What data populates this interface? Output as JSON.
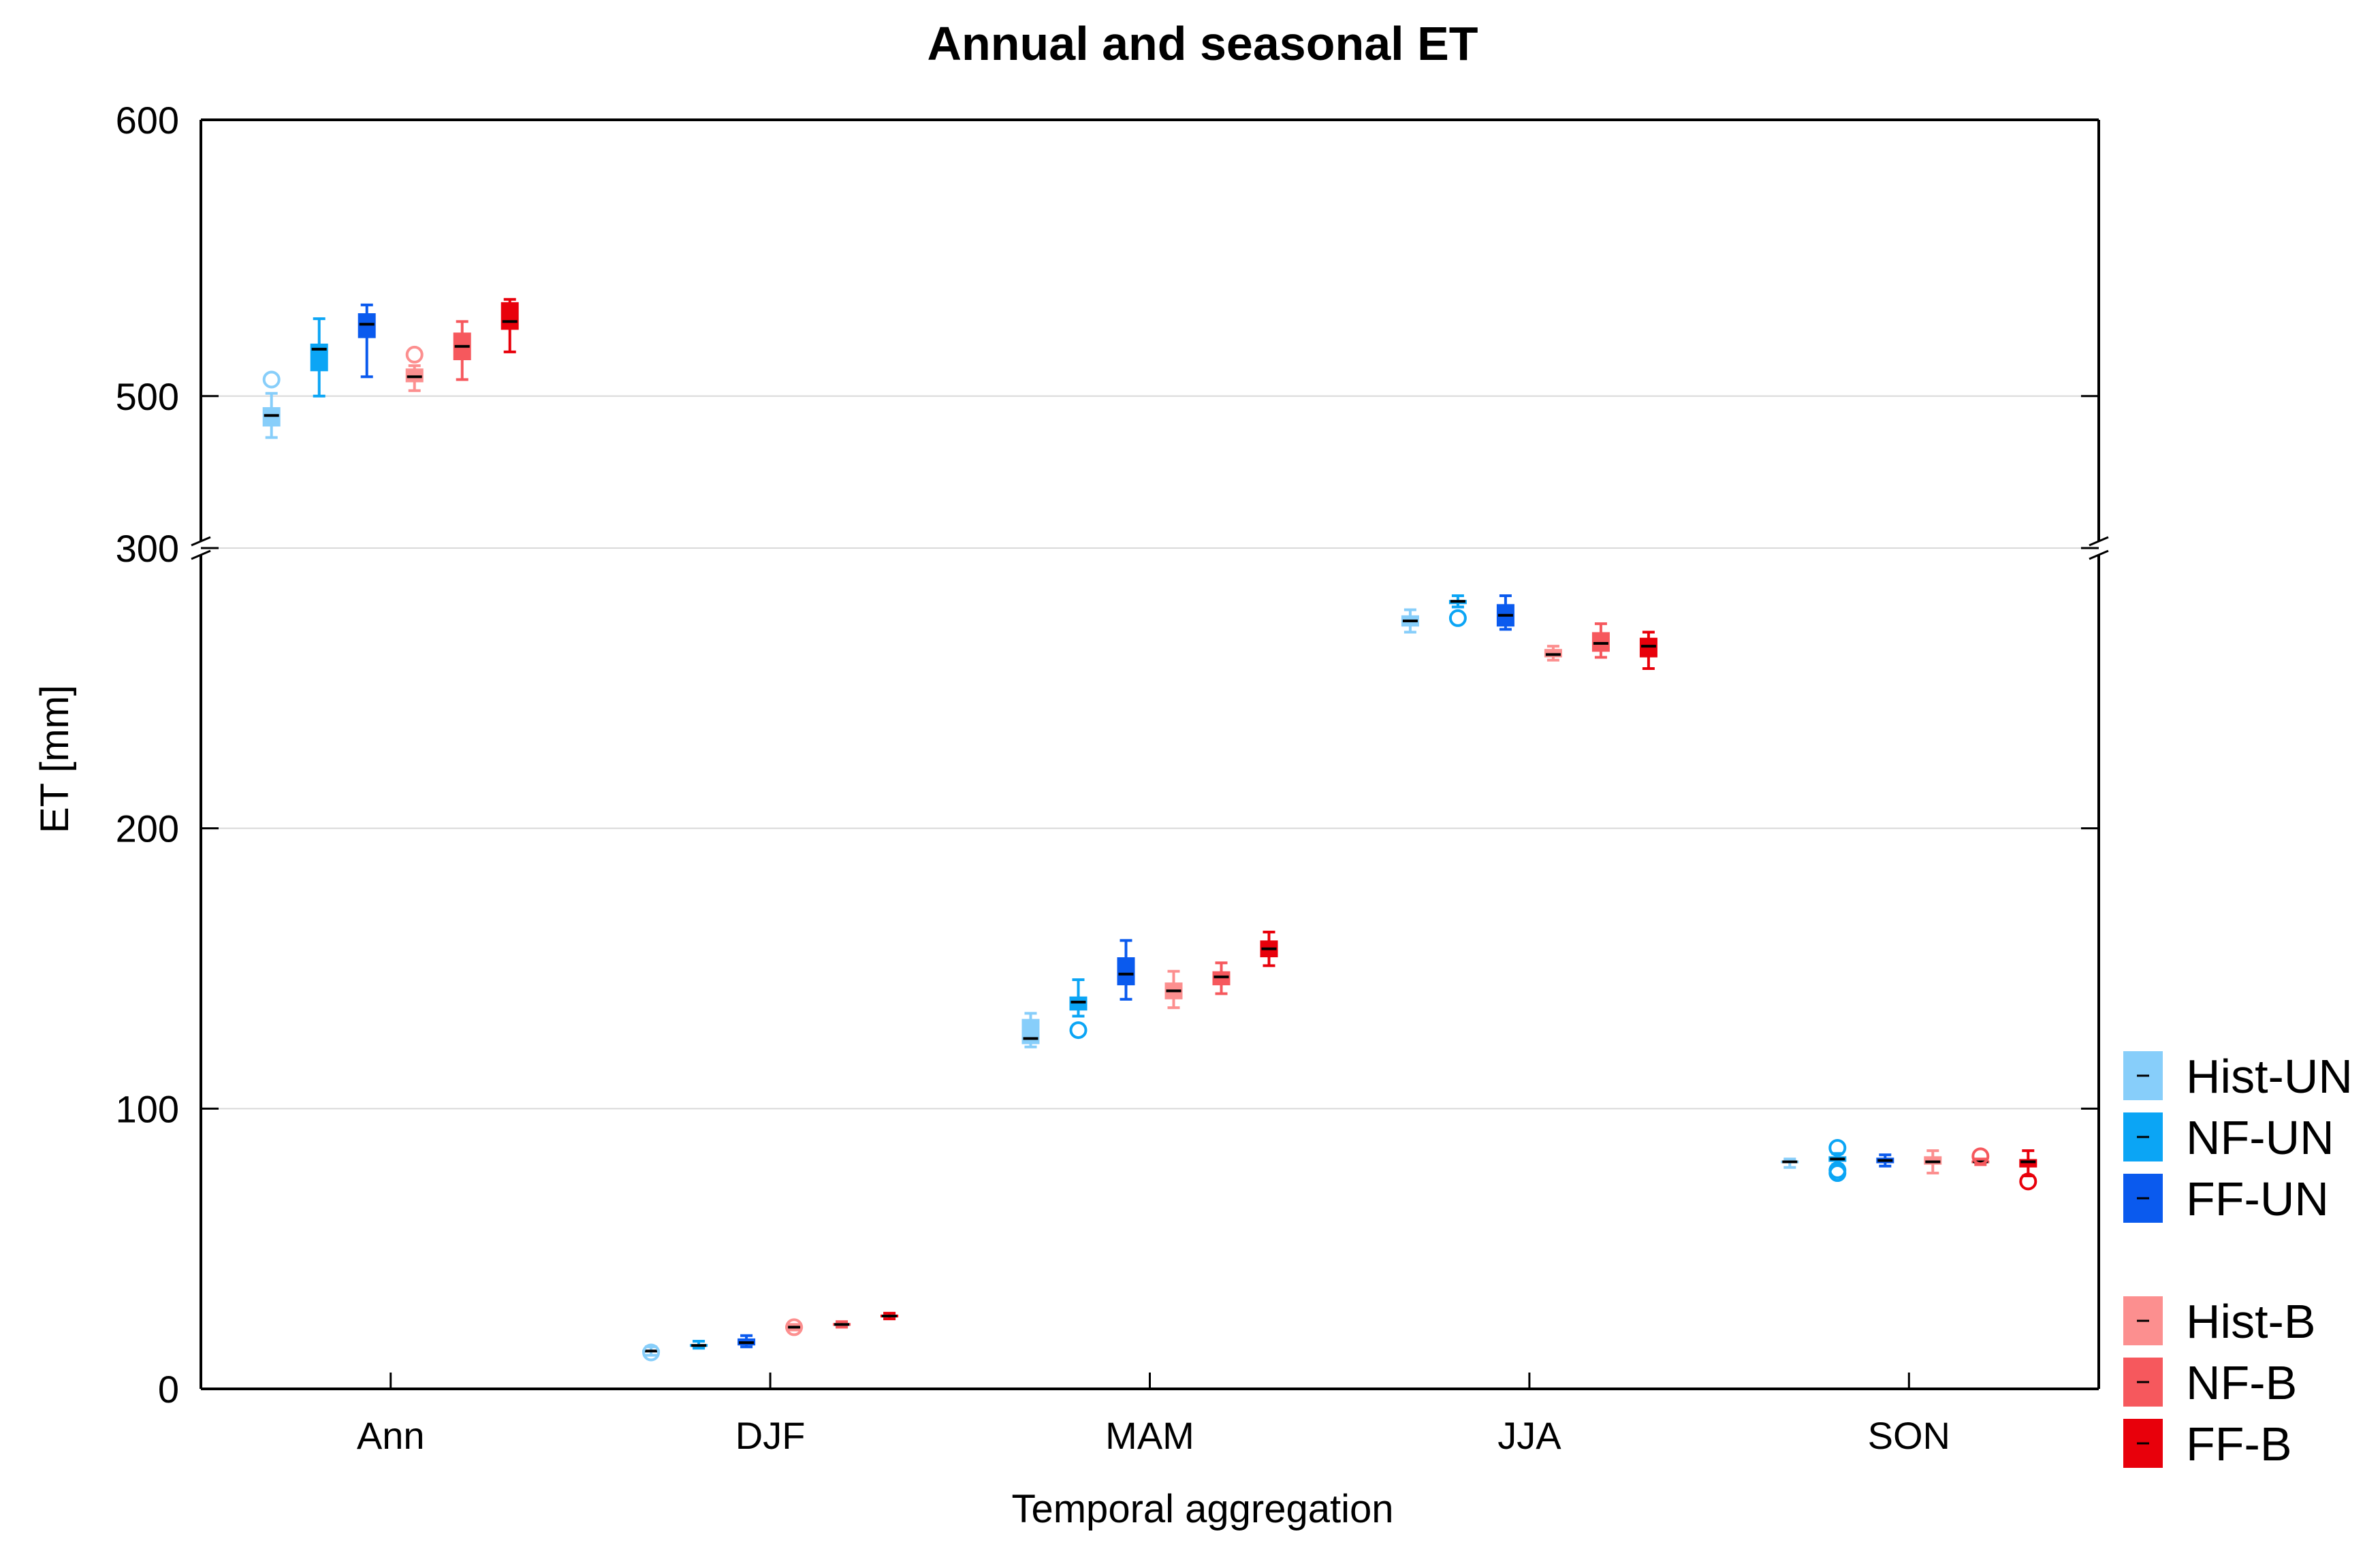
{
  "chart_data": {
    "type": "box",
    "title": "Annual and seasonal ET",
    "xlabel": "Temporal aggregation",
    "ylabel": "ET [mm]",
    "categories": [
      "Ann",
      "DJF",
      "MAM",
      "JJA",
      "SON"
    ],
    "y_segments": [
      {
        "range": [
          0,
          300
        ],
        "ticks": [
          "0",
          "100",
          "200",
          "300"
        ],
        "tick_values": [
          0,
          100,
          200,
          300
        ]
      },
      {
        "range": [
          445,
          600
        ],
        "ticks": [
          "500",
          "600"
        ],
        "tick_values": [
          500,
          600
        ]
      }
    ],
    "axis_break": [
      300,
      445
    ],
    "grid": true,
    "legend_position": "right",
    "series": [
      {
        "name": "Hist-UN",
        "color": "#87cefa",
        "boxes": [
          {
            "min": 485,
            "q1": 489,
            "median": 493,
            "q3": 496,
            "max": 501,
            "outliers": [
              506
            ]
          },
          {
            "min": 12,
            "q1": 13,
            "median": 13.5,
            "q3": 14,
            "max": 15,
            "outliers": [
              13
            ]
          },
          {
            "min": 122,
            "q1": 123,
            "median": 125,
            "q3": 132,
            "max": 134,
            "outliers": []
          },
          {
            "min": 270,
            "q1": 272,
            "median": 274,
            "q3": 276,
            "max": 278,
            "outliers": []
          },
          {
            "min": 79,
            "q1": 80.5,
            "median": 81,
            "q3": 81.5,
            "max": 82,
            "outliers": []
          }
        ]
      },
      {
        "name": "NF-UN",
        "color": "#0ba5f5",
        "boxes": [
          {
            "min": 500,
            "q1": 509,
            "median": 517,
            "q3": 519,
            "max": 528,
            "outliers": []
          },
          {
            "min": 14.5,
            "q1": 15,
            "median": 15.5,
            "q3": 16,
            "max": 17,
            "outliers": []
          },
          {
            "min": 133,
            "q1": 135,
            "median": 138,
            "q3": 140,
            "max": 146,
            "outliers": [
              128
            ]
          },
          {
            "min": 279,
            "q1": 280,
            "median": 281,
            "q3": 281.5,
            "max": 283,
            "outliers": [
              275
            ]
          },
          {
            "min": 80,
            "q1": 81,
            "median": 82,
            "q3": 83,
            "max": 84,
            "outliers": [
              86,
              78,
              77
            ]
          }
        ]
      },
      {
        "name": "FF-UN",
        "color": "#0a5aee",
        "boxes": [
          {
            "min": 507,
            "q1": 521,
            "median": 526,
            "q3": 530,
            "max": 533,
            "outliers": []
          },
          {
            "min": 15,
            "q1": 15.5,
            "median": 16.5,
            "q3": 18,
            "max": 19,
            "outliers": []
          },
          {
            "min": 139,
            "q1": 144,
            "median": 148,
            "q3": 154,
            "max": 160,
            "outliers": []
          },
          {
            "min": 271,
            "q1": 272,
            "median": 276,
            "q3": 280,
            "max": 283,
            "outliers": []
          },
          {
            "min": 79.5,
            "q1": 80.5,
            "median": 81.5,
            "q3": 82.5,
            "max": 83.5,
            "outliers": []
          }
        ]
      },
      {
        "name": "Hist-B",
        "color": "#fc8f8f",
        "boxes": [
          {
            "min": 502,
            "q1": 505,
            "median": 507,
            "q3": 510,
            "max": 511,
            "outliers": [
              515
            ]
          },
          {
            "min": 21,
            "q1": 21.5,
            "median": 22,
            "q3": 22.5,
            "max": 23,
            "outliers": [
              22
            ]
          },
          {
            "min": 136,
            "q1": 139,
            "median": 142,
            "q3": 145,
            "max": 149,
            "outliers": []
          },
          {
            "min": 260,
            "q1": 261,
            "median": 262,
            "q3": 264,
            "max": 265,
            "outliers": []
          },
          {
            "min": 77,
            "q1": 80,
            "median": 81,
            "q3": 83,
            "max": 85,
            "outliers": []
          }
        ]
      },
      {
        "name": "NF-B",
        "color": "#f6585d",
        "boxes": [
          {
            "min": 506,
            "q1": 513,
            "median": 518,
            "q3": 523,
            "max": 527,
            "outliers": []
          },
          {
            "min": 22,
            "q1": 22.5,
            "median": 23,
            "q3": 23.5,
            "max": 24,
            "outliers": []
          },
          {
            "min": 141,
            "q1": 144,
            "median": 147,
            "q3": 149,
            "max": 152,
            "outliers": []
          },
          {
            "min": 261,
            "q1": 263,
            "median": 266,
            "q3": 270,
            "max": 273,
            "outliers": []
          },
          {
            "min": 80,
            "q1": 80.5,
            "median": 81,
            "q3": 81.5,
            "max": 82,
            "outliers": [
              83
            ]
          }
        ]
      },
      {
        "name": "FF-B",
        "color": "#e8000b",
        "boxes": [
          {
            "min": 516,
            "q1": 524,
            "median": 527,
            "q3": 534,
            "max": 535,
            "outliers": []
          },
          {
            "min": 25,
            "q1": 25.5,
            "median": 26,
            "q3": 26.5,
            "max": 27,
            "outliers": []
          },
          {
            "min": 151,
            "q1": 154,
            "median": 157,
            "q3": 160,
            "max": 163,
            "outliers": []
          },
          {
            "min": 257,
            "q1": 261,
            "median": 265,
            "q3": 268,
            "max": 270,
            "outliers": []
          },
          {
            "min": 76,
            "q1": 79,
            "median": 81,
            "q3": 82,
            "max": 85,
            "outliers": [
              74
            ]
          }
        ]
      }
    ]
  }
}
